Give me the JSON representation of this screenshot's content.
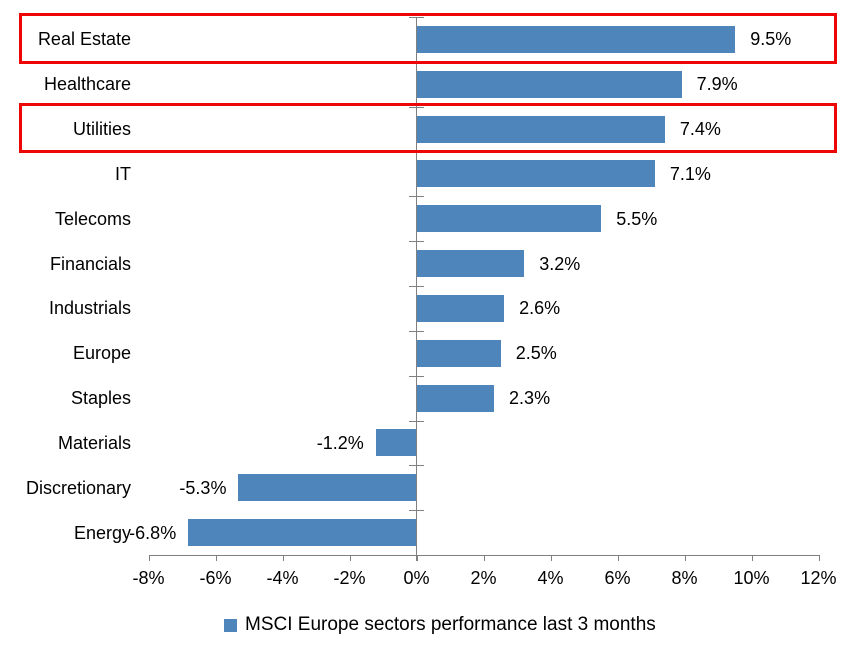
{
  "chart_data": {
    "type": "bar",
    "orientation": "horizontal",
    "title": "",
    "xlabel": "",
    "ylabel": "",
    "categories": [
      "Real Estate",
      "Healthcare",
      "Utilities",
      "IT",
      "Telecoms",
      "Financials",
      "Industrials",
      "Europe",
      "Staples",
      "Materials",
      "Discretionary",
      "Energy"
    ],
    "values": [
      9.5,
      7.9,
      7.4,
      7.1,
      5.5,
      3.2,
      2.6,
      2.5,
      2.3,
      -1.2,
      -5.3,
      -6.8
    ],
    "value_labels": [
      "9.5%",
      "7.9%",
      "7.4%",
      "7.1%",
      "5.5%",
      "3.2%",
      "2.6%",
      "2.5%",
      "2.3%",
      "-1.2%",
      "-5.3%",
      "-6.8%"
    ],
    "series_name": "MSCI Europe sectors performance last 3 months",
    "x_ticks": [
      "-8%",
      "-6%",
      "-4%",
      "-2%",
      "0%",
      "2%",
      "4%",
      "6%",
      "8%",
      "10%",
      "12%"
    ],
    "xlim": [
      -8,
      12
    ],
    "x_step": 2,
    "grid": false,
    "legend_position": "bottom",
    "highlighted_categories": [
      "Real Estate",
      "Utilities"
    ],
    "colors": {
      "bar": "#4e86bc",
      "highlight_box": "#ee0505",
      "axis": "#808080",
      "text": "#000000",
      "background": "#ffffff"
    }
  }
}
